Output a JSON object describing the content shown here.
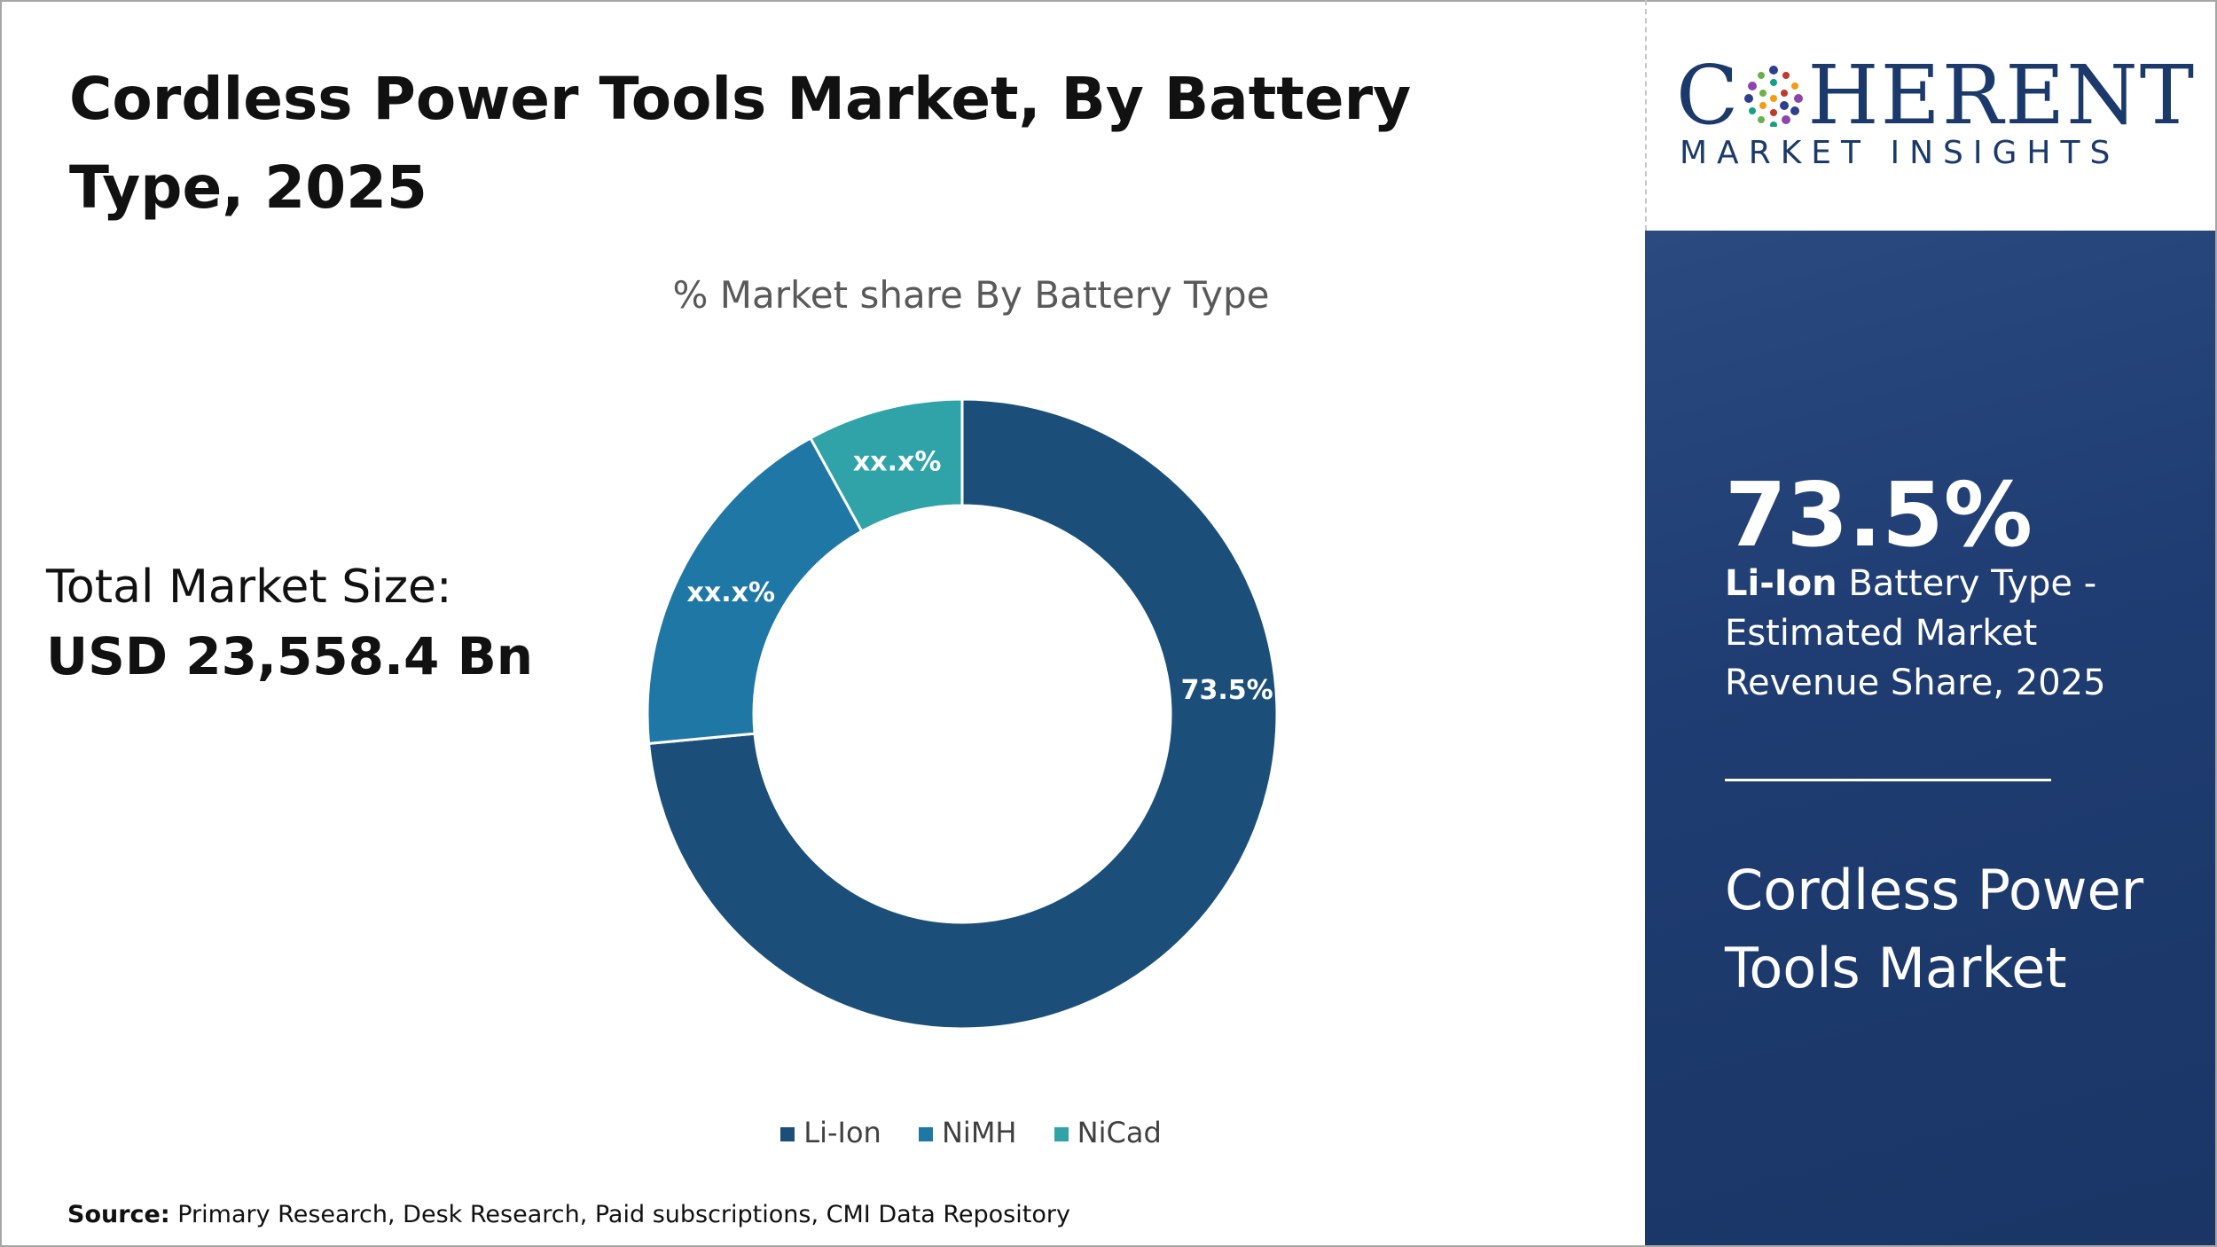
{
  "title": "Cordless Power Tools Market, By Battery Type, 2025",
  "total_market": {
    "label": "Total Market Size:",
    "value": "USD 23,558.4 Bn"
  },
  "source": {
    "label": "Source:",
    "text": " Primary Research, Desk Research, Paid subscriptions, CMI Data Repository"
  },
  "logo": {
    "word_left": "C",
    "word_right": "HERENT",
    "subtitle": "MARKET INSIGHTS",
    "dot_colors": [
      "#2e3f8f",
      "#6ab04c",
      "#c0392b",
      "#8e44ad",
      "#16a085",
      "#f39c12"
    ]
  },
  "highlight": {
    "value": "73.5%",
    "segment": "Li-Ion",
    "desc": " Battery Type - Estimated Market Revenue Share, 2025",
    "market_name": "Cordless Power Tools Market"
  },
  "chart_data": {
    "type": "pie",
    "subtitle": "% Market share By Battery Type",
    "donut": true,
    "legend_position": "bottom",
    "slices": [
      {
        "name": "Li-Ion",
        "value": 73.5,
        "label": "73.5%",
        "color": "#1b4f7a"
      },
      {
        "name": "NiMH",
        "value": 18.5,
        "label": "xx.x%",
        "color": "#1f77a6"
      },
      {
        "name": "NiCad",
        "value": 8.0,
        "label": "xx.x%",
        "color": "#2fa3a8"
      }
    ]
  }
}
